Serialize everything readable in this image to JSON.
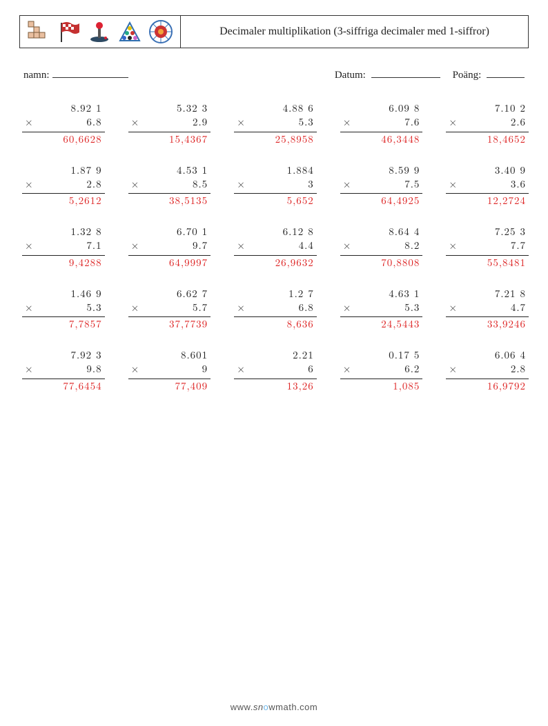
{
  "header": {
    "title": "Decimaler multiplikation (3-siffriga decimaler med 1-siffror)"
  },
  "meta": {
    "name_label": "namn:",
    "date_label": "Datum:",
    "score_label": "Poäng:"
  },
  "icon_colors": {
    "tetris": "#e9bfa0",
    "flag": "#c53131",
    "flagpole": "#333333",
    "joystick_base": "#2e4a63",
    "joystick_stick": "#555555",
    "joystick_ball": "#d23",
    "rack_outline": "#2f6fb0",
    "dart_outer": "#3a70b5",
    "dart_inner": "#cc3333",
    "dart_center": "#f2a33a"
  },
  "problems": [
    [
      {
        "a": "8.92 1",
        "b": "6.8",
        "ans": "60,6628"
      },
      {
        "a": "5.32 3",
        "b": "2.9",
        "ans": "15,4367"
      },
      {
        "a": "4.88 6",
        "b": "5.3",
        "ans": "25,8958"
      },
      {
        "a": "6.09 8",
        "b": "7.6",
        "ans": "46,3448"
      },
      {
        "a": "7.10 2",
        "b": "2.6",
        "ans": "18,4652"
      }
    ],
    [
      {
        "a": "1.87 9",
        "b": "2.8",
        "ans": "5,2612"
      },
      {
        "a": "4.53 1",
        "b": "8.5",
        "ans": "38,5135"
      },
      {
        "a": "1.884",
        "b": "3",
        "ans": "5,652"
      },
      {
        "a": "8.59 9",
        "b": "7.5",
        "ans": "64,4925"
      },
      {
        "a": "3.40 9",
        "b": "3.6",
        "ans": "12,2724"
      }
    ],
    [
      {
        "a": "1.32 8",
        "b": "7.1",
        "ans": "9,4288"
      },
      {
        "a": "6.70 1",
        "b": "9.7",
        "ans": "64,9997"
      },
      {
        "a": "6.12 8",
        "b": "4.4",
        "ans": "26,9632"
      },
      {
        "a": "8.64 4",
        "b": "8.2",
        "ans": "70,8808"
      },
      {
        "a": "7.25 3",
        "b": "7.7",
        "ans": "55,8481"
      }
    ],
    [
      {
        "a": "1.46 9",
        "b": "5.3",
        "ans": "7,7857"
      },
      {
        "a": "6.62 7",
        "b": "5.7",
        "ans": "37,7739"
      },
      {
        "a": "1.2 7",
        "b": "6.8",
        "ans": "8,636"
      },
      {
        "a": "4.63 1",
        "b": "5.3",
        "ans": "24,5443"
      },
      {
        "a": "7.21 8",
        "b": "4.7",
        "ans": "33,9246"
      }
    ],
    [
      {
        "a": "7.92 3",
        "b": "9.8",
        "ans": "77,6454"
      },
      {
        "a": "8.601",
        "b": "9",
        "ans": "77,409"
      },
      {
        "a": "2.21",
        "b": "6",
        "ans": "13,26"
      },
      {
        "a": "0.17 5",
        "b": "6.2",
        "ans": "1,085"
      },
      {
        "a": "6.06 4",
        "b": "2.8",
        "ans": "16,9792"
      }
    ]
  ],
  "footer": {
    "prefix": "www.",
    "sn": "sn",
    "o": "o",
    "w": "w",
    "rest": "math.com"
  }
}
